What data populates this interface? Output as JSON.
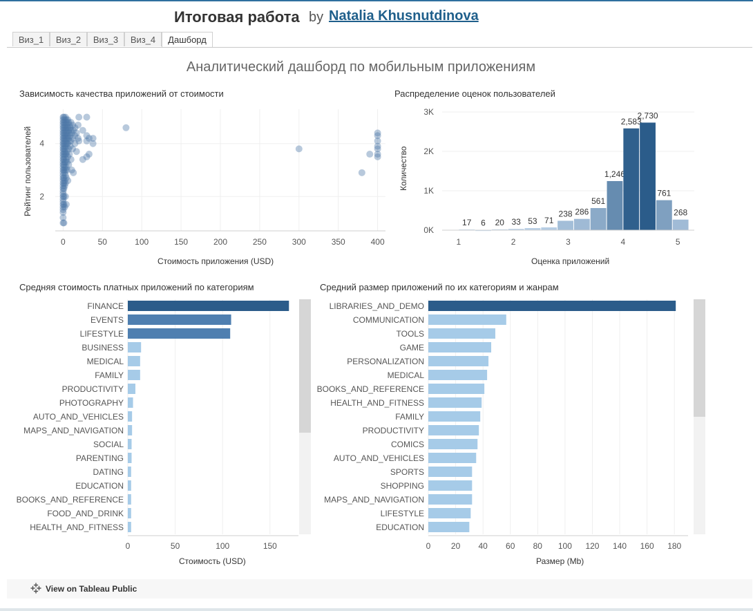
{
  "header": {
    "title": "Итоговая работа",
    "by": "by",
    "author": "Natalia Khusnutdinova"
  },
  "tabs": [
    {
      "label": "Виз_1"
    },
    {
      "label": "Виз_2"
    },
    {
      "label": "Виз_3"
    },
    {
      "label": "Виз_4"
    },
    {
      "label": "Дашборд"
    }
  ],
  "dashboard_title": "Аналитический дашборд по мобильным приложениям",
  "footer": {
    "label": "View on Tableau Public",
    "icon": "tableau-logo-icon"
  },
  "colors": {
    "scatter_point": "#4e79a7",
    "dark_blue": "#2b5c8a",
    "mid_blue": "#4f7fb0",
    "light_blue": "#a6cbe8",
    "hist_dark": "#2b5c8a",
    "hist_light": "#b9d3ec"
  },
  "chart_data": [
    {
      "type": "scatter",
      "title": "Зависимость качества приложений от стоимости",
      "xlabel": "Стоимость приложения (USD)",
      "ylabel": "Рейтинг пользователей",
      "xlim": [
        -10,
        410
      ],
      "ylim": [
        0.7,
        5.3
      ],
      "xticks": [
        0,
        50,
        100,
        150,
        200,
        250,
        300,
        350,
        400
      ],
      "yticks": [
        2,
        4
      ],
      "grid": true,
      "points": [
        [
          0,
          5.0
        ],
        [
          0,
          4.9
        ],
        [
          0,
          4.8
        ],
        [
          0,
          4.7
        ],
        [
          0,
          4.6
        ],
        [
          0,
          4.5
        ],
        [
          0,
          4.4
        ],
        [
          0,
          4.3
        ],
        [
          0,
          4.2
        ],
        [
          0,
          4.1
        ],
        [
          0,
          4.0
        ],
        [
          0,
          3.9
        ],
        [
          0,
          3.8
        ],
        [
          0,
          3.7
        ],
        [
          0,
          3.6
        ],
        [
          0,
          3.5
        ],
        [
          0,
          3.4
        ],
        [
          0,
          3.3
        ],
        [
          0,
          3.2
        ],
        [
          0,
          3.1
        ],
        [
          0,
          3.0
        ],
        [
          0,
          2.9
        ],
        [
          0,
          2.8
        ],
        [
          0,
          2.7
        ],
        [
          0,
          2.6
        ],
        [
          0,
          2.5
        ],
        [
          0,
          2.4
        ],
        [
          0,
          2.3
        ],
        [
          0,
          2.2
        ],
        [
          0,
          2.1
        ],
        [
          0,
          2.0
        ],
        [
          0,
          1.9
        ],
        [
          0,
          1.8
        ],
        [
          0,
          1.7
        ],
        [
          0,
          1.6
        ],
        [
          0,
          1.5
        ],
        [
          0,
          1.4
        ],
        [
          0,
          1.2
        ],
        [
          0,
          1.0
        ],
        [
          1,
          5.0
        ],
        [
          1,
          4.8
        ],
        [
          1,
          4.6
        ],
        [
          1,
          4.4
        ],
        [
          1,
          4.2
        ],
        [
          1,
          4.0
        ],
        [
          1,
          3.8
        ],
        [
          1,
          3.6
        ],
        [
          1,
          3.4
        ],
        [
          1,
          3.2
        ],
        [
          1,
          3.0
        ],
        [
          1,
          2.7
        ],
        [
          1,
          2.5
        ],
        [
          1,
          2.3
        ],
        [
          1,
          2.0
        ],
        [
          1,
          1.7
        ],
        [
          1,
          1.0
        ],
        [
          2,
          4.9
        ],
        [
          2,
          4.7
        ],
        [
          2,
          4.5
        ],
        [
          2,
          4.3
        ],
        [
          2,
          4.1
        ],
        [
          2,
          3.9
        ],
        [
          2,
          3.7
        ],
        [
          2,
          3.5
        ],
        [
          2,
          3.3
        ],
        [
          2,
          3.1
        ],
        [
          2,
          2.9
        ],
        [
          2,
          2.6
        ],
        [
          2,
          2.4
        ],
        [
          2,
          1.6
        ],
        [
          3,
          5.0
        ],
        [
          3,
          4.8
        ],
        [
          3,
          4.6
        ],
        [
          3,
          4.4
        ],
        [
          3,
          4.2
        ],
        [
          3,
          4.0
        ],
        [
          3,
          3.8
        ],
        [
          3,
          3.6
        ],
        [
          3,
          3.3
        ],
        [
          3,
          3.0
        ],
        [
          3,
          2.8
        ],
        [
          3,
          2.5
        ],
        [
          3,
          2.0
        ],
        [
          4,
          4.9
        ],
        [
          4,
          4.7
        ],
        [
          4,
          4.5
        ],
        [
          4,
          4.3
        ],
        [
          4,
          4.1
        ],
        [
          4,
          3.9
        ],
        [
          4,
          3.6
        ],
        [
          4,
          3.4
        ],
        [
          4,
          3.1
        ],
        [
          4,
          2.7
        ],
        [
          4,
          1.7
        ],
        [
          5,
          4.8
        ],
        [
          5,
          4.6
        ],
        [
          5,
          4.4
        ],
        [
          5,
          4.2
        ],
        [
          5,
          4.0
        ],
        [
          5,
          3.7
        ],
        [
          5,
          3.3
        ],
        [
          5,
          3.0
        ],
        [
          6,
          4.9
        ],
        [
          6,
          4.6
        ],
        [
          6,
          4.3
        ],
        [
          6,
          4.0
        ],
        [
          6,
          3.5
        ],
        [
          6,
          2.6
        ],
        [
          7,
          4.8
        ],
        [
          7,
          4.5
        ],
        [
          7,
          4.2
        ],
        [
          7,
          3.8
        ],
        [
          7,
          3.2
        ],
        [
          8,
          4.7
        ],
        [
          8,
          4.4
        ],
        [
          8,
          4.1
        ],
        [
          8,
          3.6
        ],
        [
          9,
          4.6
        ],
        [
          9,
          4.3
        ],
        [
          9,
          3.9
        ],
        [
          10,
          4.8
        ],
        [
          10,
          4.5
        ],
        [
          10,
          4.1
        ],
        [
          10,
          3.4
        ],
        [
          11,
          4.4
        ],
        [
          11,
          3.0
        ],
        [
          12,
          4.7
        ],
        [
          12,
          4.2
        ],
        [
          12,
          3.8
        ],
        [
          13,
          4.5
        ],
        [
          13,
          2.9
        ],
        [
          15,
          4.6
        ],
        [
          15,
          4.3
        ],
        [
          15,
          4.0
        ],
        [
          17,
          4.4
        ],
        [
          17,
          3.7
        ],
        [
          19,
          4.7
        ],
        [
          19,
          4.2
        ],
        [
          20,
          5.0
        ],
        [
          20,
          4.1
        ],
        [
          25,
          4.5
        ],
        [
          25,
          3.4
        ],
        [
          30,
          5.0
        ],
        [
          30,
          4.3
        ],
        [
          30,
          4.1
        ],
        [
          30,
          3.5
        ],
        [
          33,
          4.2
        ],
        [
          33,
          3.6
        ],
        [
          38,
          4.2
        ],
        [
          38,
          4.0
        ],
        [
          80,
          4.6
        ],
        [
          300,
          3.8
        ],
        [
          380,
          2.9
        ],
        [
          390,
          3.6
        ],
        [
          400,
          4.4
        ],
        [
          400,
          4.3
        ],
        [
          400,
          4.1
        ],
        [
          400,
          3.9
        ],
        [
          400,
          3.8
        ],
        [
          400,
          3.6
        ],
        [
          400,
          3.5
        ]
      ]
    },
    {
      "type": "bar",
      "title": "Распределение оценок пользователей",
      "xlabel": "Оценка приложений",
      "ylabel": "Количество",
      "xlim": [
        0.7,
        5.3
      ],
      "ylim": [
        0,
        3000
      ],
      "xticks": [
        1,
        2,
        3,
        4,
        5
      ],
      "yticks": [
        {
          "value": 0,
          "label": "0K"
        },
        {
          "value": 1000,
          "label": "1K"
        },
        {
          "value": 2000,
          "label": "2K"
        },
        {
          "value": 3000,
          "label": "3K"
        }
      ],
      "bins": [
        {
          "start": 1.0,
          "end": 1.3,
          "count": 17,
          "label": "17"
        },
        {
          "start": 1.3,
          "end": 1.6,
          "count": 6,
          "label": "6"
        },
        {
          "start": 1.6,
          "end": 1.9,
          "count": 20,
          "label": "20"
        },
        {
          "start": 1.9,
          "end": 2.2,
          "count": 33,
          "label": "33"
        },
        {
          "start": 2.2,
          "end": 2.5,
          "count": 53,
          "label": "53"
        },
        {
          "start": 2.5,
          "end": 2.8,
          "count": 71,
          "label": "71"
        },
        {
          "start": 2.8,
          "end": 3.1,
          "count": 238,
          "label": "238"
        },
        {
          "start": 3.1,
          "end": 3.4,
          "count": 286,
          "label": "286"
        },
        {
          "start": 3.4,
          "end": 3.7,
          "count": 561,
          "label": "561"
        },
        {
          "start": 3.7,
          "end": 4.0,
          "count": 1246,
          "label": "1,246"
        },
        {
          "start": 4.0,
          "end": 4.3,
          "count": 2583,
          "label": "2,583"
        },
        {
          "start": 4.3,
          "end": 4.6,
          "count": 2730,
          "label": "2,730"
        },
        {
          "start": 4.6,
          "end": 4.9,
          "count": 761,
          "label": "761"
        },
        {
          "start": 4.9,
          "end": 5.2,
          "count": 268,
          "label": "268"
        }
      ]
    },
    {
      "type": "bar",
      "orientation": "horizontal",
      "title": "Средняя стоимость платных приложений по категориям",
      "xlabel": "Стоимость (USD)",
      "ylabel": "",
      "xlim": [
        0,
        180
      ],
      "xticks": [
        0,
        50,
        100,
        150
      ],
      "categories": [
        "FINANCE",
        "EVENTS",
        "LIFESTYLE",
        "BUSINESS",
        "MEDICAL",
        "FAMILY",
        "PRODUCTIVITY",
        "PHOTOGRAPHY",
        "AUTO_AND_VEHICLES",
        "MAPS_AND_NAVIGATION",
        "SOCIAL",
        "PARENTING",
        "DATING",
        "EDUCATION",
        "BOOKS_AND_REFERENCE",
        "FOOD_AND_DRINK",
        "HEALTH_AND_FITNESS"
      ],
      "values": [
        170,
        109,
        108,
        14,
        13,
        13,
        8,
        5.5,
        4.5,
        4.5,
        4,
        4,
        3.5,
        3.5,
        3.5,
        3.5,
        3.5
      ]
    },
    {
      "type": "bar",
      "orientation": "horizontal",
      "title": "Средний размер приложений по их категориям и жанрам",
      "xlabel": "Размер (Mb)",
      "ylabel": "",
      "xlim": [
        0,
        190
      ],
      "xticks": [
        0,
        20,
        40,
        60,
        80,
        100,
        120,
        140,
        160,
        180
      ],
      "categories": [
        "LIBRARIES_AND_DEMO",
        "COMMUNICATION",
        "TOOLS",
        "GAME",
        "PERSONALIZATION",
        "MEDICAL",
        "BOOKS_AND_REFERENCE",
        "HEALTH_AND_FITNESS",
        "FAMILY",
        "PRODUCTIVITY",
        "COMICS",
        "AUTO_AND_VEHICLES",
        "SPORTS",
        "SHOPPING",
        "MAPS_AND_NAVIGATION",
        "LIFESTYLE",
        "EDUCATION"
      ],
      "values": [
        181,
        57,
        49,
        46,
        44,
        43,
        41,
        39,
        38,
        37,
        36,
        35,
        32,
        32,
        32,
        31,
        30
      ]
    }
  ]
}
